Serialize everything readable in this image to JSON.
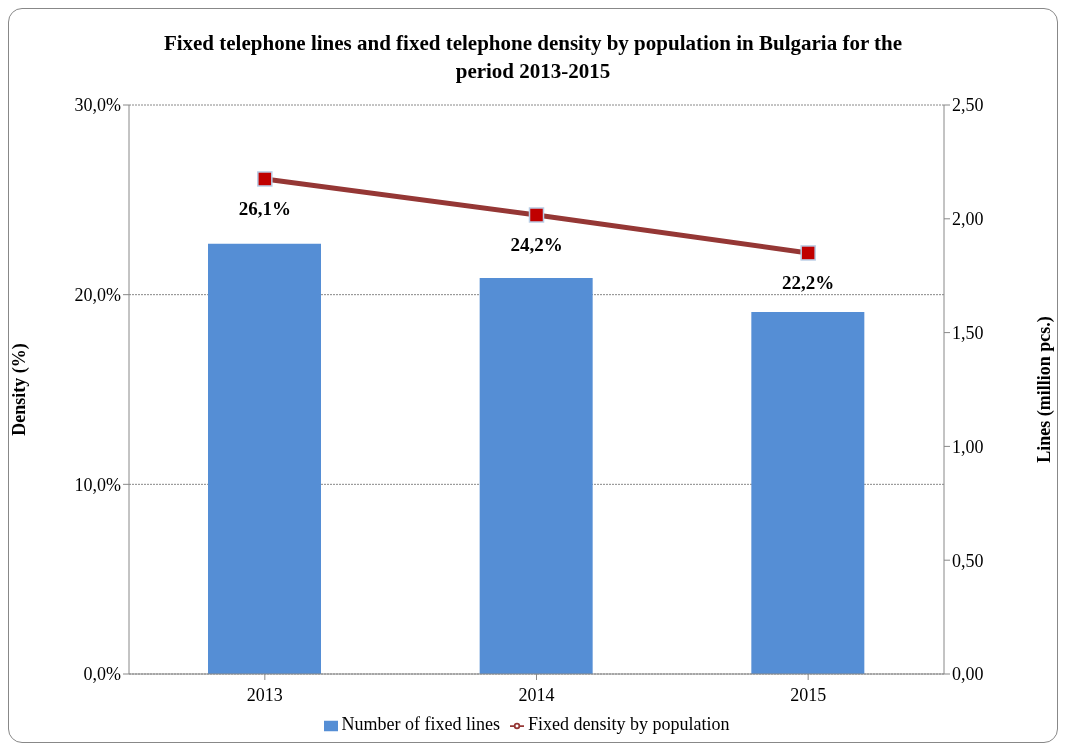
{
  "chart_data": {
    "type": "bar",
    "title": "Fixed telephone lines and fixed telephone density by population in Bulgaria for the period 2013-2015",
    "categories": [
      "2013",
      "2014",
      "2015"
    ],
    "series": [
      {
        "name": "Number of fixed lines",
        "axis": "y2",
        "color": "#558ed5",
        "values": [
          1.89,
          1.74,
          1.59
        ]
      },
      {
        "name": "Fixed density by population",
        "type": "line",
        "axis": "y",
        "color": "#953735",
        "values": [
          26.1,
          24.2,
          22.2
        ],
        "value_labels": [
          "26,1%",
          "24,2%",
          "22,2%"
        ],
        "marker": "square"
      }
    ],
    "ylabel": "Density (%)",
    "y2label": "Lines (million pcs.)",
    "ylim": [
      0,
      30
    ],
    "yticks": [
      {
        "value": 0,
        "label": "0,0%"
      },
      {
        "value": 10,
        "label": "10,0%"
      },
      {
        "value": 20,
        "label": "20,0%"
      },
      {
        "value": 30,
        "label": "30,0%"
      }
    ],
    "y2lim": [
      0,
      2.5
    ],
    "y2ticks": [
      {
        "value": 0,
        "label": "0,00"
      },
      {
        "value": 0.5,
        "label": "0,50"
      },
      {
        "value": 1,
        "label": "1,00"
      },
      {
        "value": 1.5,
        "label": "1,50"
      },
      {
        "value": 2,
        "label": "2,00"
      },
      {
        "value": 2.5,
        "label": "2,50"
      }
    ],
    "grid": "y",
    "legend": "bottom"
  }
}
